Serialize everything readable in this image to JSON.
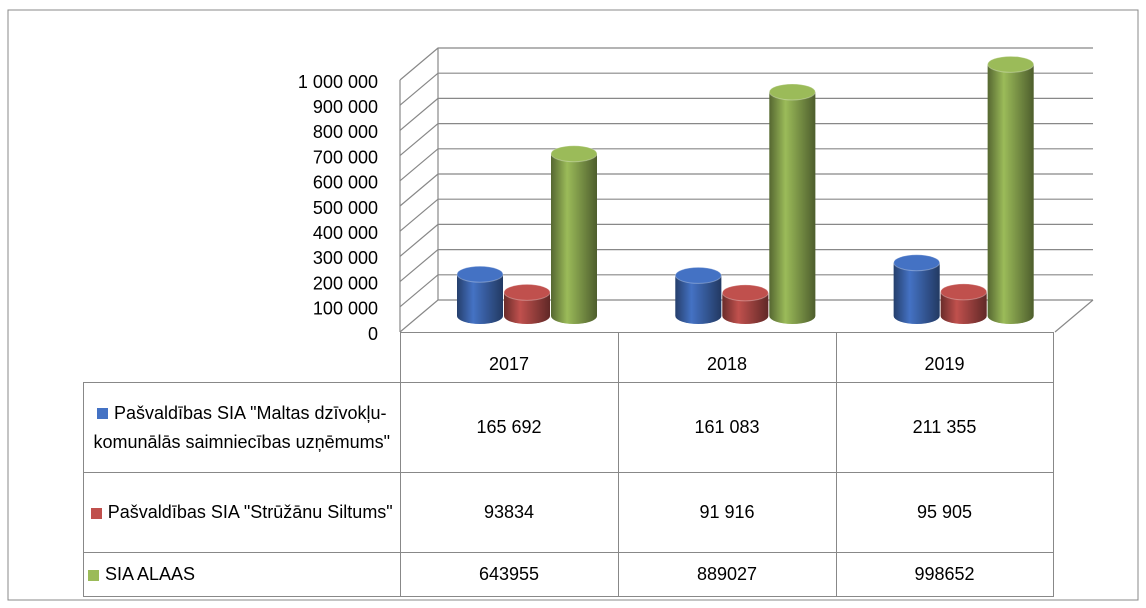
{
  "chart_data": {
    "type": "bar3d",
    "categories": [
      "2017",
      "2018",
      "2019"
    ],
    "series": [
      {
        "name": "Pašvaldības SIA \"Maltas dzīvokļu-komunālās saimniecības uzņēmums\"",
        "color": "#4472c4",
        "values": [
          165692,
          161083,
          211355
        ],
        "value_labels": [
          "165 692",
          "161 083",
          "211 355"
        ]
      },
      {
        "name": "Pašvaldības SIA \"Strūžānu Siltums\"",
        "color": "#c0504d",
        "values": [
          93834,
          91916,
          95905
        ],
        "value_labels": [
          "93834",
          "91 916",
          "95 905"
        ]
      },
      {
        "name": "SIA ALAAS",
        "color": "#9bbb59",
        "values": [
          643955,
          889027,
          998652
        ],
        "value_labels": [
          "643955",
          "889027",
          "998652"
        ]
      }
    ],
    "ylim": [
      0,
      1000000
    ],
    "yticks": [
      0,
      {
        "value": 100000,
        "label": "100 000"
      },
      {
        "value": 200000,
        "label": "200 000"
      },
      {
        "value": 300000,
        "label": "300 000"
      },
      {
        "value": 400000,
        "label": "400 000"
      },
      {
        "value": 500000,
        "label": "500 000"
      },
      {
        "value": 600000,
        "label": "600 000"
      },
      {
        "value": 700000,
        "label": "700 000"
      },
      {
        "value": 800000,
        "label": "800 000"
      },
      {
        "value": 900000,
        "label": "900 000"
      },
      {
        "value": 1000000,
        "label": "1 000 000"
      }
    ],
    "grid": true
  }
}
